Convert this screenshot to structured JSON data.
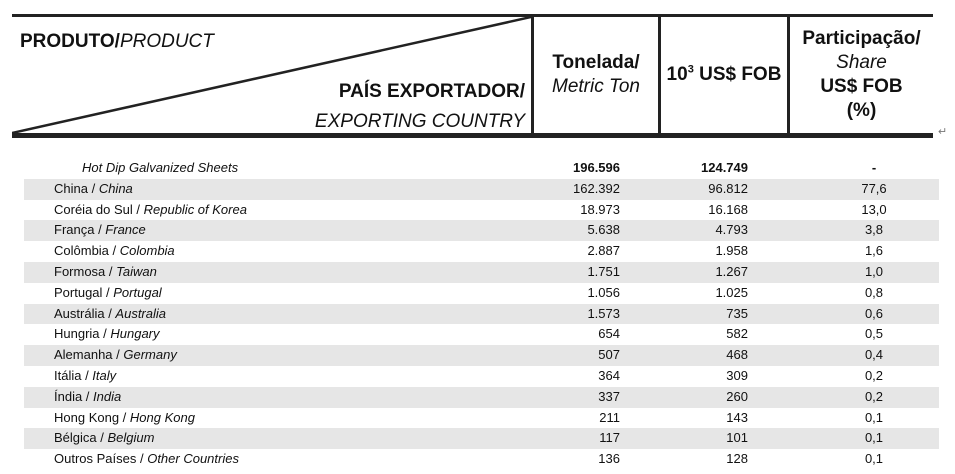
{
  "header": {
    "produto_pt": "PRODUTO/",
    "produto_en": "PRODUCT",
    "pais_pt": "PAÍS EXPORTADOR/",
    "pais_en": "EXPORTING COUNTRY",
    "col1_pt": "Tonelada/",
    "col1_en": "Metric Ton",
    "col2_base": "10",
    "col2_sup": "3",
    "col2_rest": " US$ FOB",
    "col3_pt": "Participação/",
    "col3_en": "Share",
    "col3_unit": "US$ FOB",
    "col3_pct": "(%)"
  },
  "table": {
    "title": {
      "name": "Hot Dip Galvanized Sheets",
      "ton": "196.596",
      "usd": "124.749",
      "share": "-"
    },
    "rows": [
      {
        "pt": "China / ",
        "en": "China",
        "ton": "162.392",
        "usd": "96.812",
        "share": "77,6"
      },
      {
        "pt": "Coréia do Sul / ",
        "en": "Republic of Korea",
        "ton": "18.973",
        "usd": "16.168",
        "share": "13,0"
      },
      {
        "pt": "França / ",
        "en": "France",
        "ton": "5.638",
        "usd": "4.793",
        "share": "3,8"
      },
      {
        "pt": "Colômbia / ",
        "en": "Colombia",
        "ton": "2.887",
        "usd": "1.958",
        "share": "1,6"
      },
      {
        "pt": "Formosa / ",
        "en": "Taiwan",
        "ton": "1.751",
        "usd": "1.267",
        "share": "1,0"
      },
      {
        "pt": "Portugal / ",
        "en": "Portugal",
        "ton": "1.056",
        "usd": "1.025",
        "share": "0,8"
      },
      {
        "pt": "Austrália / ",
        "en": "Australia",
        "ton": "1.573",
        "usd": "735",
        "share": "0,6"
      },
      {
        "pt": "Hungria / ",
        "en": "Hungary",
        "ton": "654",
        "usd": "582",
        "share": "0,5"
      },
      {
        "pt": "Alemanha / ",
        "en": "Germany",
        "ton": "507",
        "usd": "468",
        "share": "0,4"
      },
      {
        "pt": "Itália / ",
        "en": "Italy",
        "ton": "364",
        "usd": "309",
        "share": "0,2"
      },
      {
        "pt": "Índia / ",
        "en": "India",
        "ton": "337",
        "usd": "260",
        "share": "0,2"
      },
      {
        "pt": "Hong Kong / ",
        "en": "Hong Kong",
        "ton": "211",
        "usd": "143",
        "share": "0,1"
      },
      {
        "pt": "Bélgica / ",
        "en": "Belgium",
        "ton": "117",
        "usd": "101",
        "share": "0,1"
      },
      {
        "pt": "Outros Países / ",
        "en": "Other Countries",
        "ton": "136",
        "usd": "128",
        "share": "0,1"
      }
    ]
  }
}
